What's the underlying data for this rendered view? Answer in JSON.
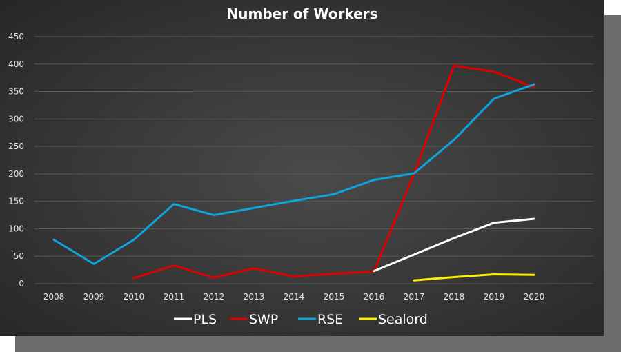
{
  "chart_data": {
    "type": "line",
    "title": "Number of Workers",
    "xlabel": "",
    "ylabel": "",
    "categories": [
      "2008",
      "2009",
      "2010",
      "2011",
      "2012",
      "2013",
      "2014",
      "2015",
      "2016",
      "2017",
      "2018",
      "2019",
      "2020"
    ],
    "ylim": [
      0,
      450
    ],
    "yticks": [
      "0",
      "50",
      "100",
      "150",
      "200",
      "250",
      "300",
      "350",
      "400",
      "450"
    ],
    "grid": true,
    "legend_position": "bottom",
    "series": [
      {
        "name": "PLS",
        "color": "#ffffff",
        "values": [
          null,
          null,
          null,
          null,
          null,
          null,
          null,
          null,
          23,
          53,
          83,
          111,
          118
        ]
      },
      {
        "name": "SWP",
        "color": "#e00000",
        "values": [
          null,
          null,
          10,
          33,
          11,
          28,
          13,
          18,
          22,
          200,
          397,
          386,
          358
        ]
      },
      {
        "name": "RSE",
        "color": "#0ea5dd",
        "values": [
          80,
          36,
          80,
          145,
          125,
          138,
          151,
          163,
          189,
          201,
          262,
          337,
          363
        ]
      },
      {
        "name": "Sealord",
        "color": "#ffee00",
        "values": [
          null,
          null,
          null,
          null,
          null,
          null,
          null,
          null,
          null,
          6,
          12,
          17,
          16
        ]
      }
    ]
  }
}
